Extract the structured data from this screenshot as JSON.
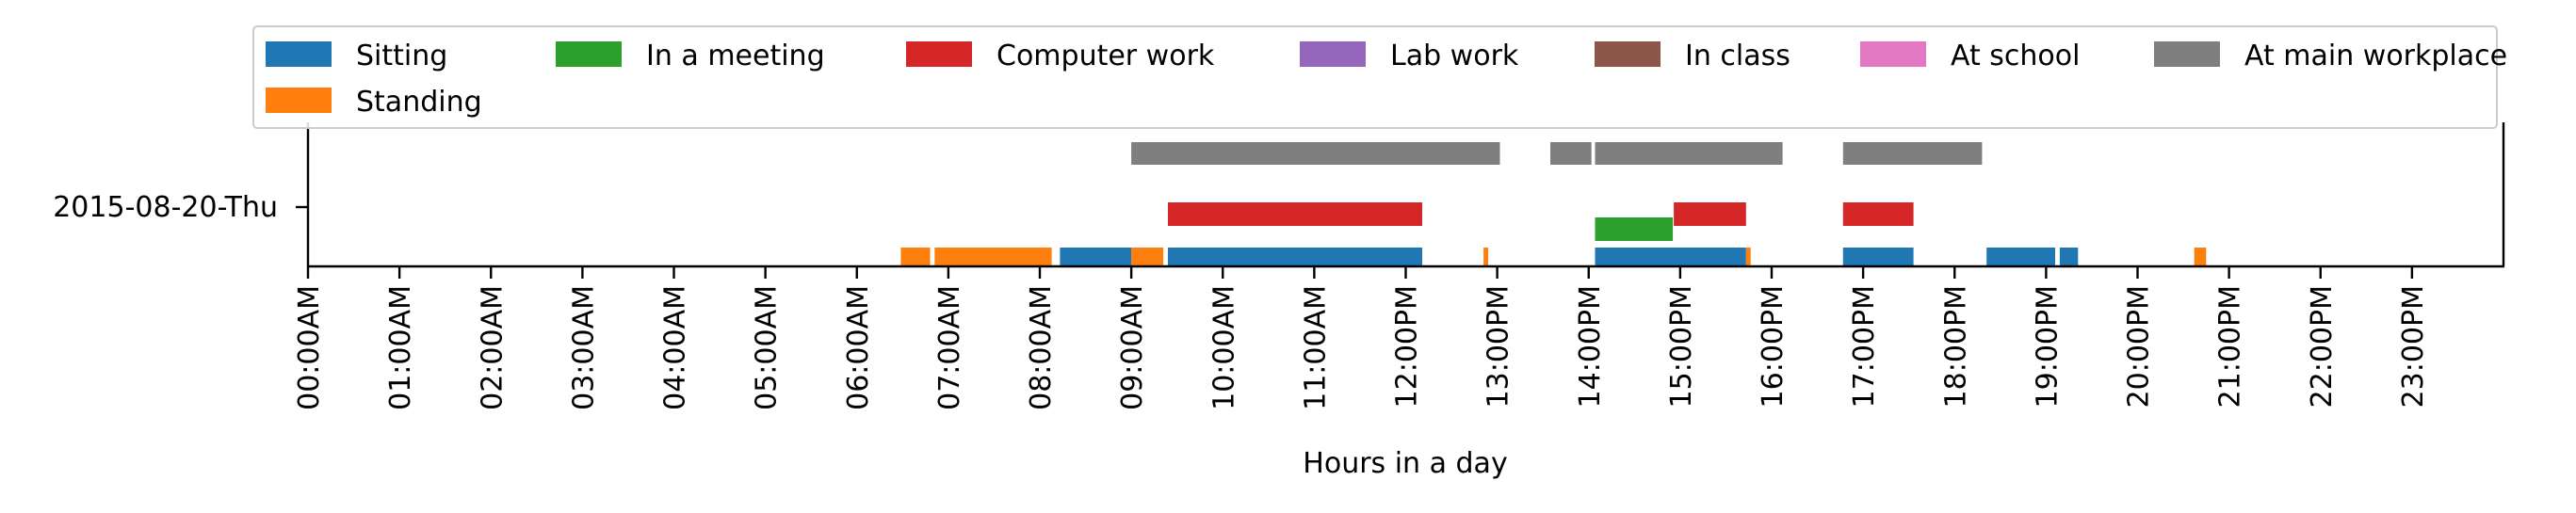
{
  "chart_data": {
    "type": "timeline",
    "xlabel": "Hours in a day",
    "day_label": "2015-08-20-Thu",
    "x_unit": "hours",
    "xlim": [
      0,
      24
    ],
    "x_ticks": [
      {
        "value": 0,
        "label": "00:00AM"
      },
      {
        "value": 1,
        "label": "01:00AM"
      },
      {
        "value": 2,
        "label": "02:00AM"
      },
      {
        "value": 3,
        "label": "03:00AM"
      },
      {
        "value": 4,
        "label": "04:00AM"
      },
      {
        "value": 5,
        "label": "05:00AM"
      },
      {
        "value": 6,
        "label": "06:00AM"
      },
      {
        "value": 7,
        "label": "07:00AM"
      },
      {
        "value": 8,
        "label": "08:00AM"
      },
      {
        "value": 9,
        "label": "09:00AM"
      },
      {
        "value": 10,
        "label": "10:00AM"
      },
      {
        "value": 11,
        "label": "11:00AM"
      },
      {
        "value": 12,
        "label": "12:00PM"
      },
      {
        "value": 13,
        "label": "13:00PM"
      },
      {
        "value": 14,
        "label": "14:00PM"
      },
      {
        "value": 15,
        "label": "15:00PM"
      },
      {
        "value": 16,
        "label": "16:00PM"
      },
      {
        "value": 17,
        "label": "17:00PM"
      },
      {
        "value": 18,
        "label": "18:00PM"
      },
      {
        "value": 19,
        "label": "19:00PM"
      },
      {
        "value": 20,
        "label": "20:00PM"
      },
      {
        "value": 21,
        "label": "21:00PM"
      },
      {
        "value": 22,
        "label": "22:00PM"
      },
      {
        "value": 23,
        "label": "23:00PM"
      }
    ],
    "legend": {
      "placement": "top",
      "entries": [
        {
          "name": "Sitting",
          "color": "#1f77b4"
        },
        {
          "name": "In a meeting",
          "color": "#2ca02c"
        },
        {
          "name": "Computer work",
          "color": "#d62728"
        },
        {
          "name": "Lab work",
          "color": "#9467bd"
        },
        {
          "name": "In class",
          "color": "#8c564b"
        },
        {
          "name": "At school",
          "color": "#e377c2"
        },
        {
          "name": "At main workplace",
          "color": "#7f7f7f"
        },
        {
          "name": "Standing",
          "color": "#ff7f0e"
        }
      ]
    },
    "series": [
      {
        "name": "Sitting",
        "color": "#1f77b4",
        "intervals": [
          [
            8.22,
            9.0
          ],
          [
            9.4,
            12.18
          ],
          [
            14.07,
            15.72
          ],
          [
            16.78,
            17.55
          ],
          [
            18.35,
            19.1
          ],
          [
            19.15,
            19.35
          ]
        ]
      },
      {
        "name": "Standing",
        "color": "#ff7f0e",
        "intervals": [
          [
            6.48,
            6.8
          ],
          [
            6.85,
            8.13
          ],
          [
            9.0,
            9.35
          ],
          [
            12.85,
            12.9
          ],
          [
            15.72,
            15.77
          ],
          [
            20.62,
            20.75
          ]
        ]
      },
      {
        "name": "In a meeting",
        "color": "#2ca02c",
        "intervals": [
          [
            14.07,
            14.92
          ]
        ]
      },
      {
        "name": "Computer work",
        "color": "#d62728",
        "intervals": [
          [
            9.4,
            12.18
          ],
          [
            14.93,
            15.72
          ],
          [
            16.78,
            17.55
          ]
        ]
      },
      {
        "name": "At main workplace",
        "color": "#7f7f7f",
        "intervals": [
          [
            9.0,
            13.03
          ],
          [
            13.58,
            14.03
          ],
          [
            14.07,
            16.12
          ],
          [
            16.78,
            18.3
          ]
        ]
      },
      {
        "name": "Lab work",
        "color": "#9467bd",
        "intervals": []
      },
      {
        "name": "In class",
        "color": "#8c564b",
        "intervals": []
      },
      {
        "name": "At school",
        "color": "#e377c2",
        "intervals": []
      }
    ],
    "lanes": [
      {
        "series": [
          "Sitting",
          "Standing"
        ]
      },
      {
        "series": [
          "In a meeting"
        ]
      },
      {
        "series": [
          "Computer work"
        ]
      },
      {
        "series": [
          "At main workplace"
        ]
      }
    ]
  }
}
